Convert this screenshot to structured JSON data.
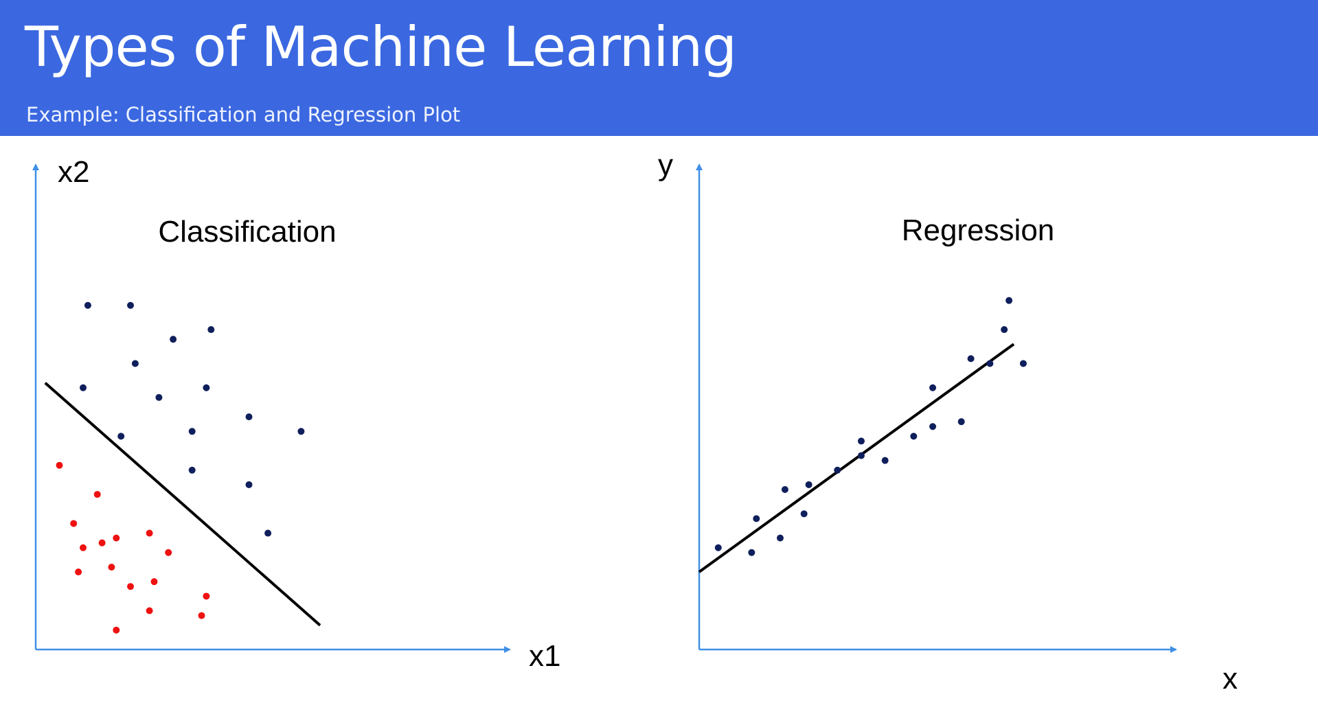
{
  "slide": {
    "title": "Types of Machine Learning",
    "subtitle": "Example: Classification and Regression Plot"
  },
  "colors": {
    "header_bg": "#3b68e0",
    "axis": "#3f8fe6",
    "class_a": "#0f1f5c",
    "class_b": "#ee1111",
    "line": "#000000"
  },
  "chart_data": [
    {
      "type": "scatter",
      "title": "Classification",
      "xlabel": "x1",
      "ylabel": "x2",
      "xlim": [
        0,
        10
      ],
      "ylim": [
        0,
        10
      ],
      "grid": false,
      "series": [
        {
          "points": [
            [
              1.1,
              7.1
            ],
            [
              2.0,
              7.1
            ],
            [
              2.9,
              6.4
            ],
            [
              3.7,
              6.6
            ],
            [
              2.1,
              5.9
            ],
            [
              1.0,
              5.4
            ],
            [
              2.6,
              5.2
            ],
            [
              3.6,
              5.4
            ],
            [
              4.5,
              4.8
            ],
            [
              1.8,
              4.4
            ],
            [
              3.3,
              4.5
            ],
            [
              5.6,
              4.5
            ],
            [
              3.3,
              3.7
            ],
            [
              4.5,
              3.4
            ],
            [
              4.9,
              2.4
            ]
          ],
          "color": "#0f1f5c"
        },
        {
          "points": [
            [
              0.5,
              3.8
            ],
            [
              1.3,
              3.2
            ],
            [
              0.8,
              2.6
            ],
            [
              1.0,
              2.1
            ],
            [
              1.7,
              2.3
            ],
            [
              2.4,
              2.4
            ],
            [
              1.4,
              2.2
            ],
            [
              2.8,
              2.0
            ],
            [
              0.9,
              1.6
            ],
            [
              1.6,
              1.7
            ],
            [
              2.0,
              1.3
            ],
            [
              2.5,
              1.4
            ],
            [
              3.6,
              1.1
            ],
            [
              2.4,
              0.8
            ],
            [
              3.5,
              0.7
            ],
            [
              1.7,
              0.4
            ]
          ],
          "color": "#ee1111"
        }
      ],
      "boundary": {
        "x": [
          0.2,
          6.0
        ],
        "y": [
          5.5,
          0.5
        ]
      }
    },
    {
      "type": "scatter",
      "title": "Regression",
      "xlabel": "x",
      "ylabel": "y",
      "xlim": [
        0,
        10
      ],
      "ylim": [
        0,
        10
      ],
      "grid": false,
      "series": [
        {
          "points": [
            [
              0.4,
              2.1
            ],
            [
              1.1,
              2.0
            ],
            [
              1.2,
              2.7
            ],
            [
              1.7,
              2.3
            ],
            [
              1.8,
              3.3
            ],
            [
              2.2,
              2.8
            ],
            [
              2.3,
              3.4
            ],
            [
              2.9,
              3.7
            ],
            [
              3.4,
              4.3
            ],
            [
              3.4,
              4.0
            ],
            [
              3.9,
              3.9
            ],
            [
              4.5,
              4.4
            ],
            [
              4.9,
              4.6
            ],
            [
              4.9,
              5.4
            ],
            [
              5.5,
              4.7
            ],
            [
              5.7,
              6.0
            ],
            [
              6.1,
              5.9
            ],
            [
              6.4,
              6.6
            ],
            [
              6.8,
              5.9
            ],
            [
              6.5,
              7.2
            ]
          ],
          "color": "#0f1f5c"
        }
      ],
      "fit_line": {
        "x": [
          0,
          6.6
        ],
        "y": [
          1.6,
          6.3
        ]
      }
    }
  ]
}
